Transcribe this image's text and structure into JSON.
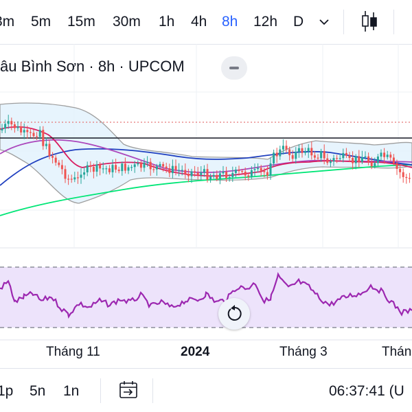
{
  "toolbar": {
    "intervals": [
      "3m",
      "5m",
      "15m",
      "30m",
      "1h",
      "4h",
      "8h",
      "12h",
      "D"
    ],
    "active_interval": "8h",
    "dropdown_icon": "chevron-down-icon",
    "chart_type_icon": "candlestick-icon"
  },
  "legend": {
    "text": "âu Bình Sơn · 8h · UPCOM"
  },
  "time_axis": {
    "labels": [
      "Tháng 11",
      "2024",
      "Tháng 3",
      "Thán"
    ]
  },
  "bottom_bar": {
    "ranges": [
      "1p",
      "5n",
      "1n"
    ],
    "date_range_icon": "calendar-goto-icon",
    "clock": "06:37:41 (U"
  },
  "colors": {
    "accent": "#2962ff",
    "candle_up": "#26a69a",
    "candle_down": "#ef5350",
    "rsi_line": "#9c27b0",
    "rsi_band": "#ede3fb",
    "bollinger_fill": "#e3f2fd",
    "ma_long": "#00e676",
    "ma_mid": "#1f3fbf",
    "ma_short": "#d81b60",
    "ma_purple": "#ab47bc"
  },
  "reset_icon": "reset-rotate-icon"
}
